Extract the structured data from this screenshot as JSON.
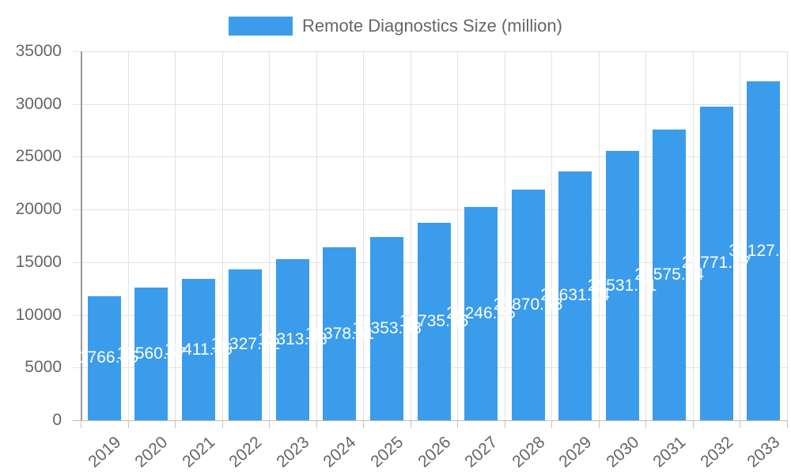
{
  "legend": {
    "label": "Remote Diagnostics Size (million)"
  },
  "chart_data": {
    "type": "bar",
    "title": "Remote Diagnostics Size (million)",
    "legend_position": "top",
    "categories": [
      "2019",
      "2020",
      "2021",
      "2022",
      "2023",
      "2024",
      "2025",
      "2026",
      "2027",
      "2028",
      "2029",
      "2030",
      "2031",
      "2032",
      "2033"
    ],
    "series": [
      {
        "name": "Remote Diagnostics Size (million)",
        "values": [
          11766.85,
          12560.47,
          13411.45,
          14327.42,
          15313.48,
          16378.51,
          17353.88,
          18735.55,
          20246.55,
          21870.58,
          23631.14,
          25531.71,
          27575.44,
          29771.17,
          32127.44
        ]
      }
    ],
    "value_labels": [
      "11766.85",
      "12560.47",
      "13411.45",
      "14327.42",
      "15313.48",
      "16378.51",
      "17353.88",
      "18735.55",
      "20246.55",
      "21870.58",
      "23631.14",
      "25531.71",
      "27575.44",
      "29771.17",
      "32127.44"
    ],
    "xlabel": "",
    "ylabel": "",
    "ylim": [
      0,
      35000
    ],
    "ytick_step": 5000,
    "yticks": [
      "0",
      "5000",
      "10000",
      "15000",
      "20000",
      "25000",
      "30000",
      "35000"
    ],
    "grid": true,
    "colors": {
      "bar": "#3b9cec",
      "grid": "#e2e2e2",
      "axis": "#999999",
      "zero_line": "#bdbdbd",
      "tick_below": "#c4c4c4",
      "tick_text": "#666666",
      "value_label": "#ffffff",
      "legend_text": "#666666"
    }
  }
}
